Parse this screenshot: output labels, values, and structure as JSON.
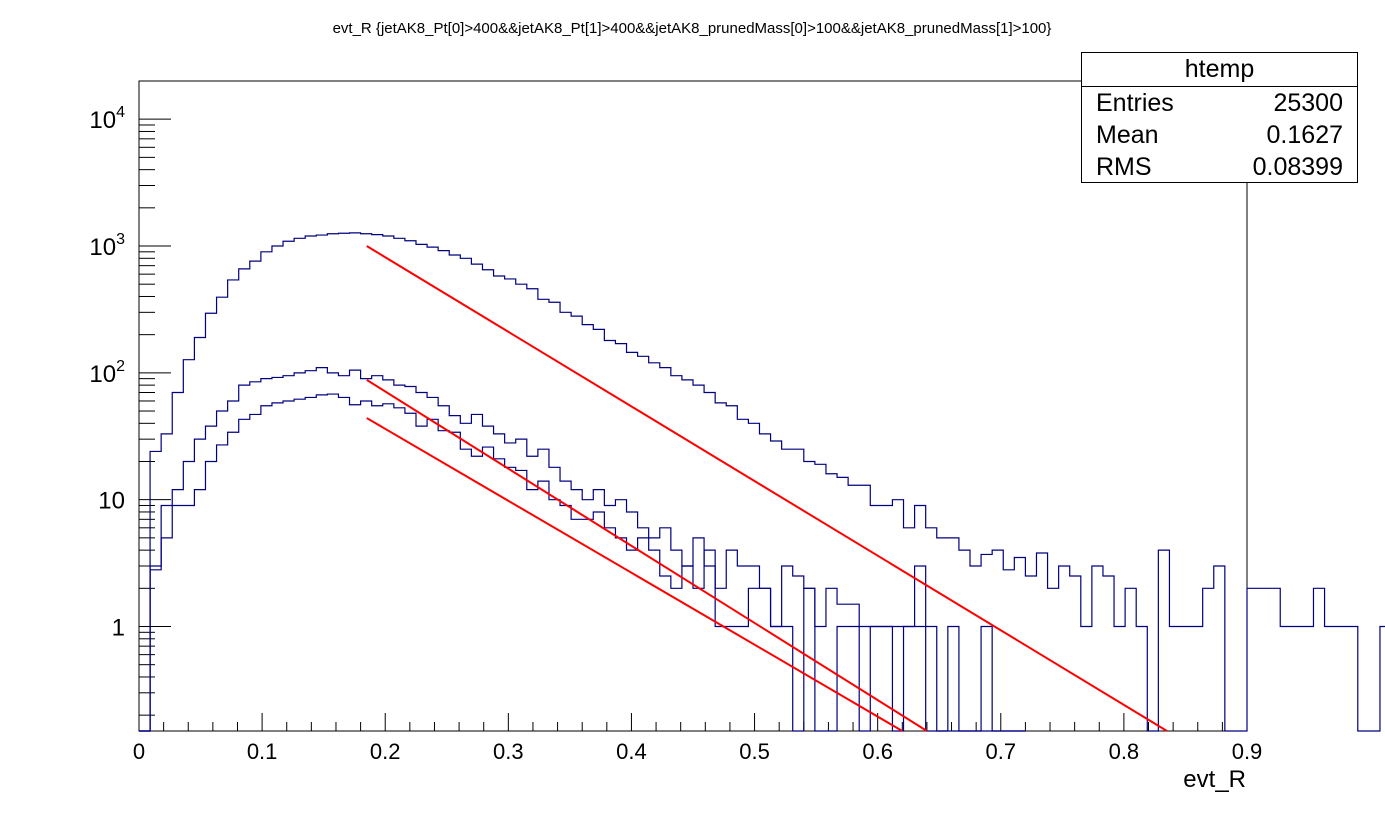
{
  "chart_data": {
    "type": "histogram",
    "title": "evt_R {jetAK8_Pt[0]>400&&jetAK8_Pt[1]>400&&jetAK8_prunedMass[0]>100&&jetAK8_prunedMass[1]>100}",
    "xlabel": "evt_R",
    "ylabel": "",
    "xlim": [
      0,
      0.9
    ],
    "ylim": [
      0.15,
      20000
    ],
    "log_y": true,
    "grid": false,
    "x_ticks": [
      "0",
      "0.1",
      "0.2",
      "0.3",
      "0.4",
      "0.5",
      "0.6",
      "0.7",
      "0.8",
      "0.9"
    ],
    "y_ticks": [
      {
        "value": 1,
        "label": "1"
      },
      {
        "value": 10,
        "label": "10"
      },
      {
        "value": 100,
        "base": "10",
        "exp": "2"
      },
      {
        "value": 1000,
        "base": "10",
        "exp": "3"
      },
      {
        "value": 10000,
        "base": "10",
        "exp": "4"
      }
    ],
    "bin_width": 0.009,
    "series": [
      {
        "color": "#000080",
        "values": [
          0,
          24,
          33,
          70,
          127,
          190,
          295,
          395,
          540,
          660,
          760,
          900,
          1000,
          1090,
          1150,
          1200,
          1220,
          1250,
          1260,
          1270,
          1250,
          1230,
          1200,
          1150,
          1100,
          1030,
          980,
          920,
          850,
          800,
          720,
          650,
          580,
          550,
          500,
          460,
          380,
          360,
          300,
          280,
          240,
          220,
          180,
          170,
          145,
          135,
          120,
          110,
          95,
          88,
          80,
          70,
          58,
          55,
          43,
          40,
          33,
          29,
          25,
          25,
          20,
          19,
          16,
          15,
          13,
          13,
          9,
          9,
          10,
          6,
          9,
          6,
          5,
          5,
          4,
          3,
          3.7,
          4,
          2.8,
          3.5,
          2.5,
          3.8,
          2,
          3,
          2.5,
          1,
          3,
          2.5,
          1,
          2,
          1,
          0.15,
          4,
          1,
          1,
          1,
          2,
          3,
          0,
          0,
          2,
          2,
          2,
          1,
          1,
          1,
          2,
          1,
          1,
          1,
          0.15,
          0.15,
          1,
          3,
          2,
          1,
          0,
          0,
          0,
          0
        ]
      },
      {
        "color": "#000080",
        "values": [
          0,
          2.8,
          5,
          9,
          9,
          12,
          20,
          27,
          34,
          43,
          47,
          55,
          58,
          60,
          62,
          64,
          67,
          68,
          64,
          56,
          60,
          55,
          57,
          53,
          48,
          38,
          43,
          35,
          34,
          25,
          22,
          26,
          21,
          18,
          17,
          12,
          14,
          10,
          9,
          7,
          7,
          8,
          6,
          5,
          4,
          5,
          4,
          2.5,
          2,
          3,
          2,
          4,
          1,
          1,
          1,
          2,
          2,
          1,
          1,
          0.15,
          2,
          0.15,
          0.15,
          1,
          1,
          0.15,
          1,
          1,
          1,
          1,
          1,
          0.15,
          0.15,
          0.15,
          0.15,
          0.15,
          0.15,
          0.15,
          0.15,
          0.15
        ]
      },
      {
        "color": "#000080",
        "values": [
          0,
          3,
          9,
          12,
          20,
          30,
          38,
          50,
          60,
          80,
          85,
          90,
          92,
          95,
          100,
          104,
          110,
          100,
          95,
          105,
          90,
          95,
          88,
          80,
          78,
          70,
          64,
          55,
          46,
          40,
          47,
          38,
          33,
          28,
          30,
          22,
          25,
          18,
          14,
          12,
          10,
          12,
          9,
          10,
          8,
          6,
          5,
          6,
          4,
          3,
          5,
          3,
          2,
          4,
          3,
          3,
          2,
          1,
          3,
          2.5,
          2,
          1,
          2,
          1.5,
          1.5,
          1,
          1,
          1,
          0.15,
          1,
          3,
          1,
          0.15,
          1,
          0.15,
          0.15,
          1,
          0.15,
          0.15,
          0.15
        ]
      }
    ],
    "fits": [
      {
        "color": "#ff0000",
        "x_start": 0.185,
        "x_end": 0.835,
        "y_start": 1000,
        "y_end": 0.15
      },
      {
        "color": "#ff0000",
        "x_start": 0.185,
        "x_end": 0.64,
        "y_start": 88,
        "y_end": 0.15
      },
      {
        "color": "#ff0000",
        "x_start": 0.185,
        "x_end": 0.62,
        "y_start": 44,
        "y_end": 0.15
      }
    ]
  },
  "stats": {
    "title": "htemp",
    "rows": [
      {
        "label": "Entries",
        "value": "25300"
      },
      {
        "label": "Mean",
        "value": "0.1627"
      },
      {
        "label": "RMS",
        "value": "0.08399"
      }
    ]
  }
}
